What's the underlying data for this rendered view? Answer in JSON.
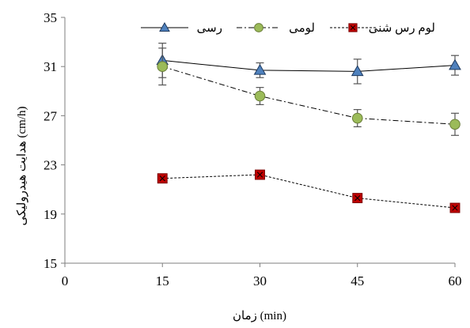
{
  "chart_data": {
    "type": "line",
    "xlabel": "زمان (min)",
    "ylabel": "هدایت هیدرولیکی (cm/h)",
    "xlim": [
      0,
      60
    ],
    "ylim": [
      15,
      35
    ],
    "xticks": [
      0,
      15,
      30,
      45,
      60
    ],
    "yticks": [
      15,
      19,
      23,
      27,
      31,
      35
    ],
    "grid": false,
    "legend_position": "top",
    "x": [
      15,
      30,
      45,
      60
    ],
    "series": [
      {
        "name": "رسی",
        "values": [
          31.5,
          30.7,
          30.6,
          31.1
        ],
        "errors": [
          1.4,
          0.6,
          1.0,
          0.8
        ],
        "marker": "triangle",
        "line_style": "solid",
        "color": "#4f81bd"
      },
      {
        "name": "لومی",
        "values": [
          31.0,
          28.6,
          26.8,
          26.3
        ],
        "errors": [
          1.5,
          0.7,
          0.7,
          0.9
        ],
        "marker": "circle",
        "line_style": "dash-dot",
        "color": "#9bbb59"
      },
      {
        "name": "لوم رس شنی",
        "values": [
          21.9,
          22.2,
          20.3,
          19.5
        ],
        "errors": [
          0,
          0,
          0,
          0
        ],
        "marker": "square-x",
        "line_style": "dotted",
        "color": "#c00000"
      }
    ]
  }
}
